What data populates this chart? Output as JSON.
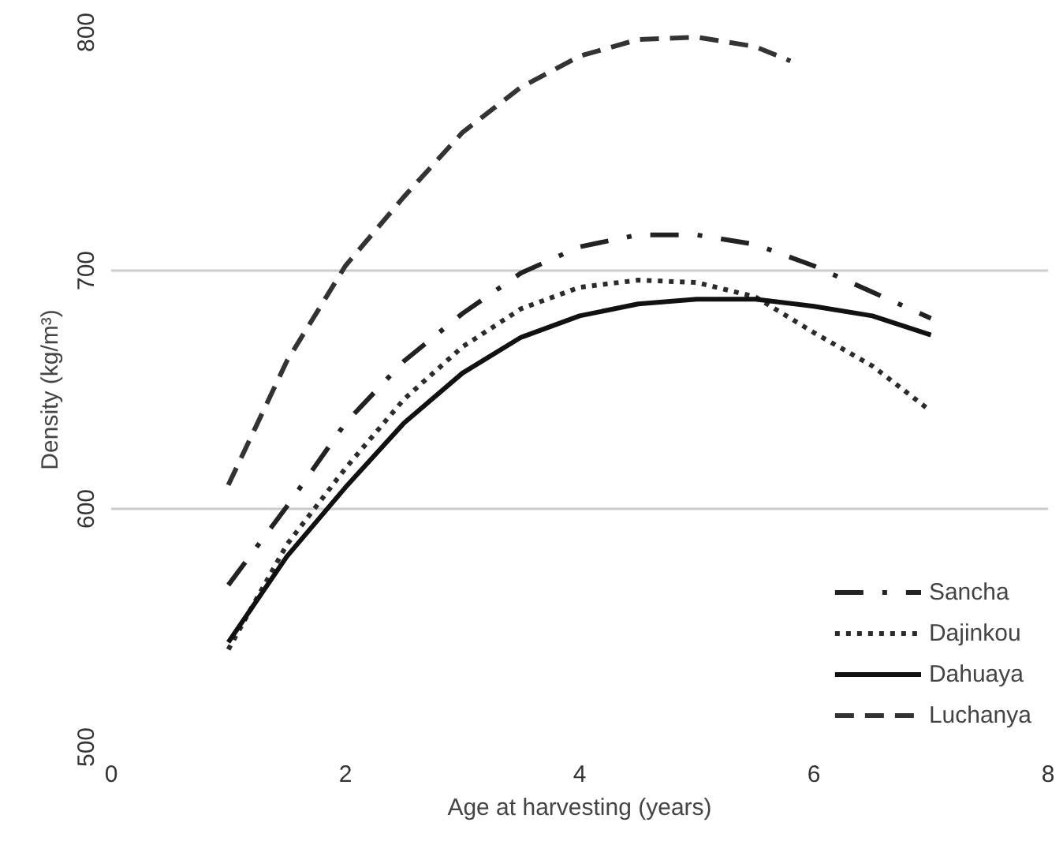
{
  "chart_data": {
    "type": "line",
    "xlabel": "Age at harvesting (years)",
    "ylabel": "Density (kg/m³)",
    "xlim": [
      0,
      8
    ],
    "ylim": [
      500,
      800
    ],
    "xticks": [
      0,
      2,
      4,
      6,
      8
    ],
    "yticks": [
      500,
      600,
      700,
      800
    ],
    "grid": "y",
    "legend": "bottom right",
    "series": [
      {
        "name": "Sancha",
        "color": "#222222",
        "line_style": "dashdot",
        "x": [
          1,
          1.5,
          2,
          2.5,
          3,
          3.5,
          4,
          4.5,
          5,
          5.5,
          6,
          6.5,
          7
        ],
        "values": [
          568,
          601,
          636,
          662,
          682,
          699,
          710,
          715,
          715,
          711,
          702,
          691,
          680
        ]
      },
      {
        "name": "Dajinkou",
        "color": "#2b2b2b",
        "line_style": "dotted",
        "x": [
          1,
          1.5,
          2,
          2.5,
          3,
          3.5,
          4,
          4.5,
          5,
          5.5,
          6,
          6.5,
          7
        ],
        "values": [
          541,
          585,
          617,
          646,
          668,
          684,
          693,
          696,
          695,
          689,
          674,
          660,
          641
        ]
      },
      {
        "name": "Dahuaya",
        "color": "#111111",
        "line_style": "solid",
        "x": [
          1,
          1.5,
          2,
          2.5,
          3,
          3.5,
          4,
          4.5,
          5,
          5.5,
          6,
          6.5,
          7
        ],
        "values": [
          544,
          580,
          609,
          636,
          657,
          672,
          681,
          686,
          688,
          688,
          685,
          681,
          673
        ]
      },
      {
        "name": "Luchanya",
        "color": "#333333",
        "line_style": "dashed",
        "x": [
          1,
          1.5,
          2,
          2.5,
          3,
          3.5,
          4,
          4.5,
          5,
          5.5,
          5.8
        ],
        "values": [
          610,
          662,
          702,
          731,
          758,
          777,
          790,
          797,
          798,
          794,
          788
        ]
      }
    ]
  }
}
